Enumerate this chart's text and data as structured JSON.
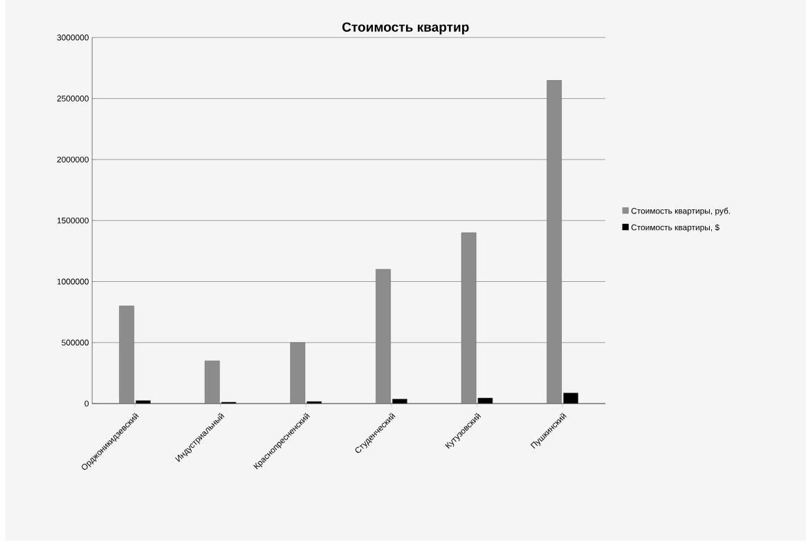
{
  "chart_data": {
    "type": "bar",
    "title": "Стоимость квартир",
    "categories": [
      "Орджоникидзевский",
      "Индустриальный",
      "Краснопресненский",
      "Студенческий",
      "Кутузовский",
      "Пушкинский"
    ],
    "series": [
      {
        "name": "Стоимость квартиры, руб.",
        "color": "#8c8c8c",
        "values": [
          800000,
          350000,
          500000,
          1100000,
          1400000,
          2650000
        ]
      },
      {
        "name": "Стоимость квартиры, $",
        "color": "#000000",
        "values": [
          25000,
          12000,
          17000,
          37000,
          46000,
          87000
        ]
      }
    ],
    "ylim": [
      0,
      3000000
    ],
    "yticks": [
      0,
      500000,
      1000000,
      1500000,
      2000000,
      2500000,
      3000000
    ],
    "grid": "y",
    "legend": "right"
  }
}
